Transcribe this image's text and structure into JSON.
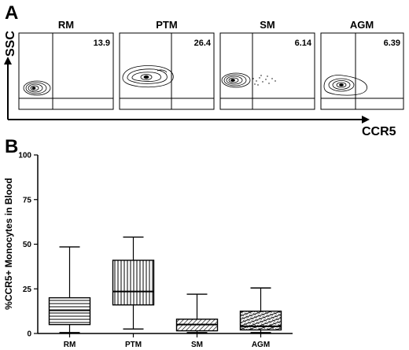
{
  "panel_a": {
    "letter": "A",
    "y_axis_label": "SSC",
    "x_axis_label": "CCR5",
    "plots": [
      {
        "title": "RM",
        "percent": "13.9"
      },
      {
        "title": "PTM",
        "percent": "26.4"
      },
      {
        "title": "SM",
        "percent": "6.14"
      },
      {
        "title": "AGM",
        "percent": "6.39"
      }
    ]
  },
  "panel_b": {
    "letter": "B"
  },
  "chart_data": {
    "type": "box",
    "ylabel": "%CCR5+ Monocytes in Blood",
    "ylim": [
      0,
      100
    ],
    "yticks": [
      0,
      25,
      50,
      75,
      100
    ],
    "categories": [
      "RM",
      "PTM",
      "SM",
      "AGM"
    ],
    "boxes": [
      {
        "name": "RM",
        "min": 0.5,
        "q1": 5,
        "median": 13,
        "q3": 20,
        "max": 48.5,
        "pattern": "horizontal"
      },
      {
        "name": "PTM",
        "min": 2.5,
        "q1": 16,
        "median": 23.5,
        "q3": 41,
        "max": 54,
        "pattern": "vertical"
      },
      {
        "name": "SM",
        "min": 0.5,
        "q1": 1.5,
        "median": 5,
        "q3": 8,
        "max": 22,
        "pattern": "diagonal"
      },
      {
        "name": "AGM",
        "min": 0.5,
        "q1": 2,
        "median": 4,
        "q3": 12.5,
        "max": 25.5,
        "pattern": "diagonal-cross"
      }
    ]
  }
}
